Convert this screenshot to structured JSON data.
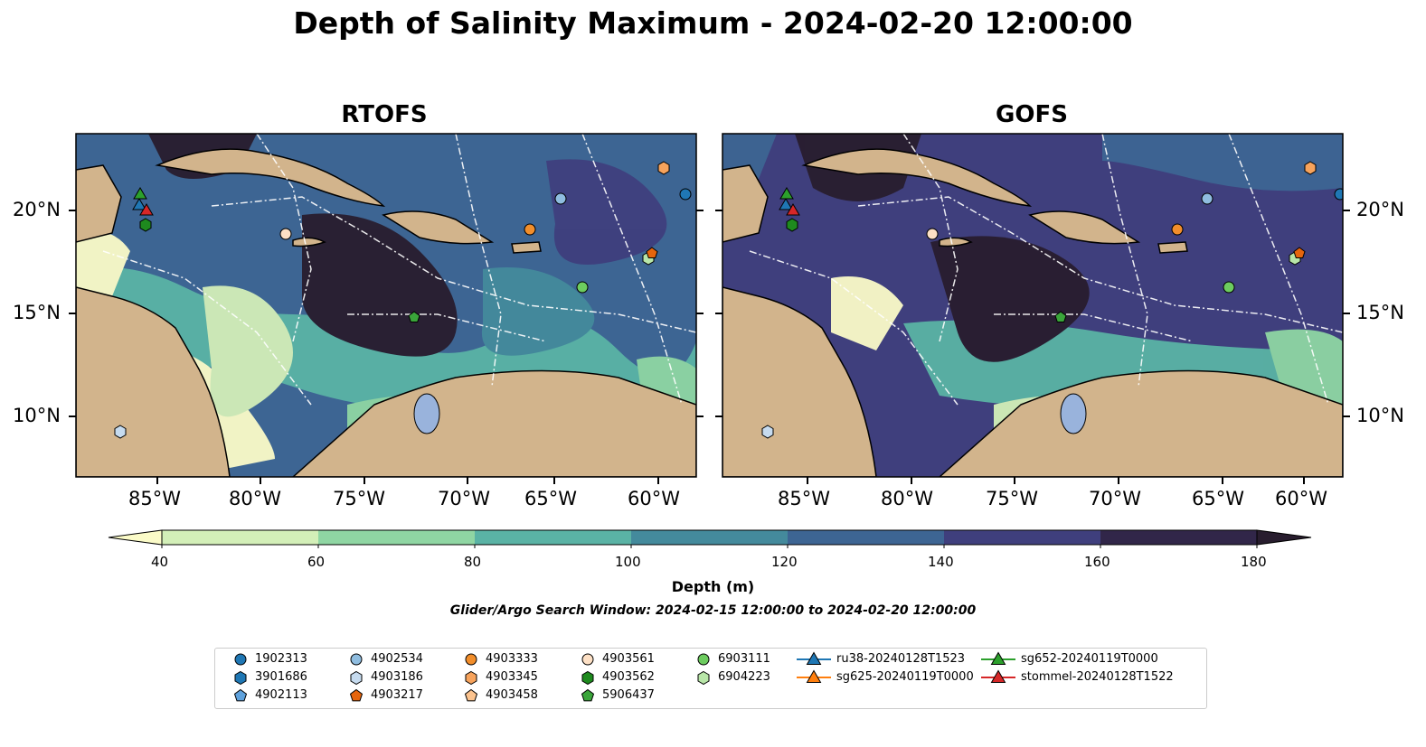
{
  "title": "Depth of Salinity Maximum - 2024-02-20 12:00:00",
  "panels": [
    {
      "title": "RTOFS"
    },
    {
      "title": "GOFS"
    }
  ],
  "axes": {
    "lon_ticks": [
      "85°W",
      "80°W",
      "75°W",
      "70°W",
      "65°W",
      "60°W"
    ],
    "lat_ticks": [
      "20°N",
      "15°N",
      "10°N"
    ]
  },
  "colorbar": {
    "label": "Depth (m)",
    "ticks": [
      "40",
      "60",
      "80",
      "100",
      "120",
      "140",
      "160",
      "180"
    ],
    "colors": [
      "#fbfbc8",
      "#d3efb8",
      "#8fd6a3",
      "#5ab3a5",
      "#448a9c",
      "#3d6593",
      "#3f3f7d",
      "#312649",
      "#281d2e"
    ]
  },
  "search_window": "Glider/Argo Search Window: 2024-02-15 12:00:00 to 2024-02-20 12:00:00",
  "legend": [
    {
      "label": "1902313",
      "marker": "circle",
      "color": "#1f77b4"
    },
    {
      "label": "3901686",
      "marker": "hexagon",
      "color": "#1f77b4"
    },
    {
      "label": "4902113",
      "marker": "pentagon",
      "color": "#5fa2dd"
    },
    {
      "label": "4902534",
      "marker": "circle",
      "color": "#8fbde0"
    },
    {
      "label": "4903186",
      "marker": "hexagon",
      "color": "#c6dbef"
    },
    {
      "label": "4903217",
      "marker": "pentagon",
      "color": "#e6650d"
    },
    {
      "label": "4903333",
      "marker": "circle",
      "color": "#f28e2b"
    },
    {
      "label": "4903345",
      "marker": "hexagon",
      "color": "#f7a35c"
    },
    {
      "label": "4903458",
      "marker": "pentagon",
      "color": "#fcc38e"
    },
    {
      "label": "4903561",
      "marker": "circle",
      "color": "#fde0c5"
    },
    {
      "label": "4903562",
      "marker": "hexagon",
      "color": "#1e8a1e"
    },
    {
      "label": "5906437",
      "marker": "pentagon",
      "color": "#3aa53a"
    },
    {
      "label": "6903111",
      "marker": "circle",
      "color": "#6dcc5f"
    },
    {
      "label": "6904223",
      "marker": "hexagon",
      "color": "#b8e6a8"
    },
    {
      "label": "ru38-20240128T1523",
      "marker": "triangle-line",
      "color": "#1f77b4"
    },
    {
      "label": "sg625-20240119T0000",
      "marker": "triangle-line",
      "color": "#ff7f0e"
    },
    {
      "label": "sg652-20240119T0000",
      "marker": "triangle-line",
      "color": "#2ca02c"
    },
    {
      "label": "stommel-20240128T1522",
      "marker": "triangle-line",
      "color": "#d62728"
    }
  ],
  "colors": {
    "land": "#d2b48c",
    "lake": "#99b3dc"
  }
}
